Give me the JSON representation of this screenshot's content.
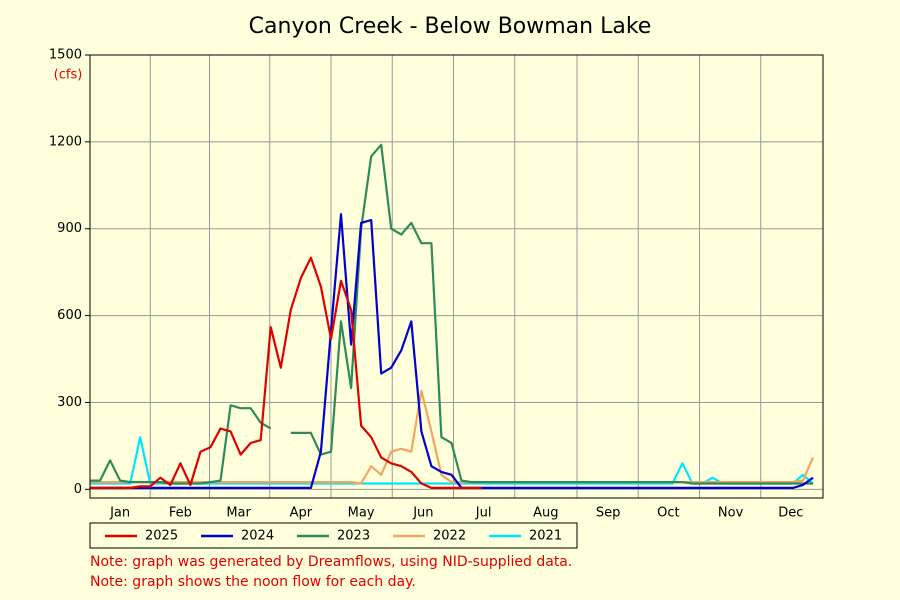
{
  "chart_data": {
    "type": "line",
    "title": "Canyon Creek - Below Bowman Lake",
    "y_unit": "(cfs)",
    "x": [
      1,
      6,
      11,
      16,
      21,
      26,
      31,
      36,
      41,
      46,
      51,
      56,
      61,
      66,
      71,
      76,
      81,
      86,
      91,
      96,
      101,
      106,
      111,
      116,
      121,
      126,
      131,
      136,
      141,
      146,
      151,
      156,
      161,
      166,
      171,
      176,
      181,
      186,
      191,
      196,
      201,
      206,
      211,
      216,
      221,
      226,
      231,
      236,
      241,
      246,
      251,
      256,
      261,
      266,
      271,
      276,
      281,
      286,
      291,
      296,
      301,
      306,
      311,
      316,
      321,
      326,
      331,
      336,
      341,
      346,
      351,
      356,
      361
    ],
    "xlim": [
      1,
      366
    ],
    "xticks": [
      {
        "value": 16,
        "label": "Jan"
      },
      {
        "value": 46,
        "label": "Feb"
      },
      {
        "value": 75,
        "label": "Mar"
      },
      {
        "value": 106,
        "label": "Apr"
      },
      {
        "value": 136,
        "label": "May"
      },
      {
        "value": 167,
        "label": "Jun"
      },
      {
        "value": 197,
        "label": "Jul"
      },
      {
        "value": 228,
        "label": "Aug"
      },
      {
        "value": 259,
        "label": "Sep"
      },
      {
        "value": 289,
        "label": "Oct"
      },
      {
        "value": 320,
        "label": "Nov"
      },
      {
        "value": 350,
        "label": "Dec"
      }
    ],
    "ylim": [
      -30,
      1500
    ],
    "yticks": [
      0,
      300,
      600,
      900,
      1200,
      1500
    ],
    "grid": true,
    "series": [
      {
        "name": "2025",
        "color": "#e00000",
        "values": [
          5,
          5,
          5,
          5,
          5,
          10,
          10,
          40,
          15,
          90,
          15,
          130,
          145,
          210,
          200,
          120,
          160,
          170,
          560,
          420,
          620,
          730,
          800,
          700,
          520,
          720,
          620,
          220,
          180,
          110,
          90,
          80,
          60,
          20,
          5,
          5,
          5,
          5,
          5,
          5,
          null,
          null,
          null,
          null,
          null,
          null,
          null,
          null,
          null,
          null,
          null,
          null,
          null,
          null,
          null,
          null,
          null,
          null,
          null,
          null,
          null,
          null,
          null,
          null,
          null,
          null,
          null,
          null,
          null,
          null,
          null,
          null,
          null
        ]
      },
      {
        "name": "2024",
        "color": "#0000d0",
        "values": [
          5,
          5,
          5,
          5,
          5,
          5,
          5,
          5,
          5,
          5,
          5,
          5,
          5,
          5,
          5,
          5,
          5,
          5,
          5,
          5,
          5,
          5,
          5,
          130,
          550,
          950,
          500,
          920,
          930,
          400,
          420,
          480,
          580,
          200,
          80,
          60,
          50,
          5,
          5,
          5,
          5,
          5,
          5,
          5,
          5,
          5,
          5,
          5,
          5,
          5,
          5,
          5,
          5,
          5,
          5,
          5,
          5,
          5,
          5,
          5,
          5,
          5,
          5,
          5,
          5,
          5,
          5,
          5,
          5,
          5,
          5,
          15,
          40
        ]
      },
      {
        "name": "2023",
        "color": "#2e8b57",
        "values": [
          30,
          30,
          100,
          30,
          25,
          25,
          25,
          25,
          20,
          20,
          20,
          20,
          25,
          30,
          290,
          280,
          280,
          230,
          210,
          null,
          195,
          195,
          195,
          120,
          130,
          580,
          350,
          900,
          1150,
          1190,
          900,
          880,
          920,
          850,
          850,
          180,
          160,
          30,
          25,
          25,
          25,
          25,
          25,
          25,
          25,
          25,
          25,
          25,
          25,
          25,
          25,
          25,
          25,
          25,
          25,
          25,
          25,
          25,
          25,
          25,
          20,
          20,
          20,
          20,
          20,
          20,
          20,
          20,
          20,
          20,
          20,
          20,
          20
        ]
      },
      {
        "name": "2022",
        "color": "#f4a460",
        "values": [
          25,
          25,
          25,
          25,
          25,
          25,
          25,
          25,
          25,
          25,
          25,
          25,
          25,
          25,
          25,
          25,
          25,
          25,
          25,
          25,
          25,
          25,
          25,
          25,
          25,
          25,
          25,
          20,
          80,
          50,
          130,
          140,
          130,
          340,
          200,
          50,
          25,
          25,
          25,
          25,
          25,
          25,
          25,
          25,
          25,
          25,
          25,
          25,
          25,
          25,
          25,
          25,
          25,
          25,
          25,
          25,
          25,
          25,
          25,
          25,
          25,
          25,
          25,
          25,
          25,
          25,
          25,
          25,
          25,
          25,
          25,
          30,
          110
        ]
      },
      {
        "name": "2021",
        "color": "#00e5ff",
        "values": [
          20,
          20,
          20,
          20,
          20,
          180,
          20,
          20,
          20,
          20,
          20,
          20,
          20,
          20,
          20,
          20,
          20,
          20,
          20,
          20,
          20,
          20,
          20,
          20,
          20,
          20,
          20,
          20,
          20,
          20,
          20,
          20,
          20,
          20,
          20,
          20,
          20,
          20,
          20,
          20,
          20,
          20,
          20,
          20,
          20,
          20,
          20,
          20,
          20,
          20,
          20,
          20,
          20,
          20,
          20,
          20,
          20,
          20,
          20,
          90,
          20,
          20,
          40,
          20,
          20,
          20,
          20,
          20,
          20,
          20,
          20,
          50,
          20
        ]
      }
    ],
    "notes": [
      "Note: graph was generated by Dreamflows, using NID-supplied data.",
      "Note: graph shows the noon flow for each day."
    ]
  }
}
